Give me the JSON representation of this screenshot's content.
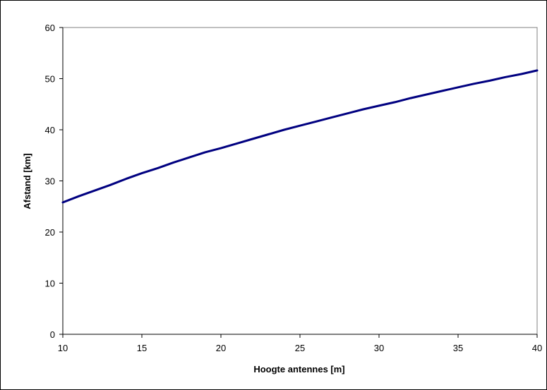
{
  "chart_data": {
    "type": "line",
    "title": "",
    "xlabel": "Hoogte antennes [m]",
    "ylabel": "Afstand [km]",
    "xlim": [
      10,
      40
    ],
    "ylim": [
      0,
      60
    ],
    "xticks": [
      10,
      15,
      20,
      25,
      30,
      35,
      40
    ],
    "yticks": [
      0,
      10,
      20,
      30,
      40,
      50,
      60
    ],
    "grid": false,
    "legend": "none",
    "series": [
      {
        "color": "#000080",
        "x": [
          10,
          11,
          12,
          13,
          14,
          15,
          16,
          17,
          18,
          19,
          20,
          21,
          22,
          23,
          24,
          25,
          26,
          27,
          28,
          29,
          30,
          31,
          32,
          33,
          34,
          35,
          36,
          37,
          38,
          39,
          40
        ],
        "y": [
          25.8,
          27.0,
          28.1,
          29.2,
          30.4,
          31.5,
          32.5,
          33.6,
          34.6,
          35.6,
          36.4,
          37.3,
          38.2,
          39.1,
          40.0,
          40.8,
          41.6,
          42.4,
          43.2,
          44.0,
          44.7,
          45.4,
          46.2,
          46.9,
          47.6,
          48.3,
          49.0,
          49.6,
          50.3,
          50.9,
          51.6
        ]
      }
    ]
  }
}
